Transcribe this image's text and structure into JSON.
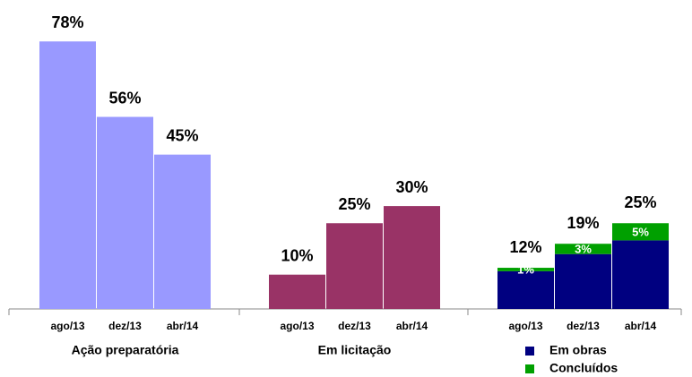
{
  "chart_data": {
    "type": "bar",
    "groups": [
      {
        "label": "Ação preparatória",
        "categories": [
          "ago/13",
          "dez/13",
          "abr/14"
        ],
        "series": [
          {
            "color": "#9999ff",
            "values": [
              78,
              56,
              45
            ],
            "value_labels": [
              "78%",
              "56%",
              "45%"
            ]
          }
        ]
      },
      {
        "label": "Em licitação",
        "categories": [
          "ago/13",
          "dez/13",
          "abr/14"
        ],
        "series": [
          {
            "color": "#993366",
            "values": [
              10,
              25,
              30
            ],
            "value_labels": [
              "10%",
              "25%",
              "30%"
            ]
          }
        ]
      },
      {
        "categories": [
          "ago/13",
          "dez/13",
          "abr/14"
        ],
        "stacked": true,
        "series": [
          {
            "name": "Em obras",
            "color": "#000080",
            "values": [
              11,
              16,
              20
            ]
          },
          {
            "name": "Concluídos",
            "color": "#00a000",
            "values": [
              1,
              3,
              5
            ],
            "value_labels": [
              "1%",
              "3%",
              "5%"
            ]
          }
        ],
        "total_labels": [
          "12%",
          "19%",
          "25%"
        ]
      }
    ]
  }
}
